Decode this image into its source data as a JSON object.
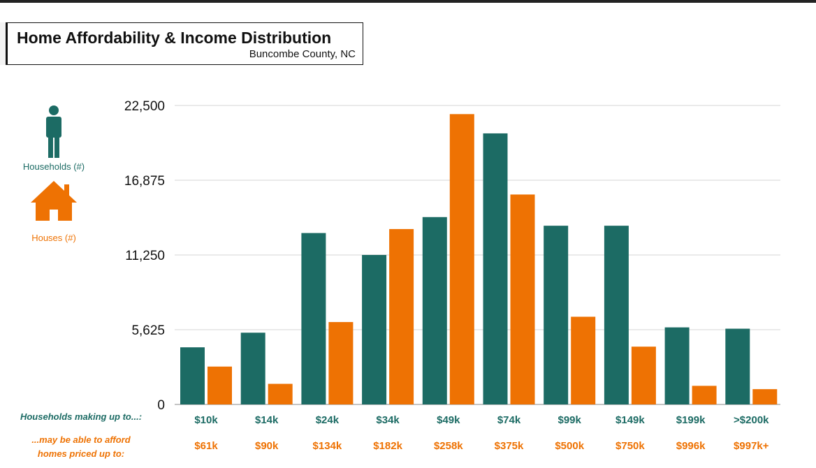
{
  "title": "Home Affordability & Income Distribution",
  "subtitle": "Buncombe County, NC",
  "legend": {
    "households": "Households (#)",
    "houses": "Houses (#)",
    "households_icon": "person-icon",
    "houses_icon": "house-icon"
  },
  "row_labels": {
    "income": "Households making up to...:",
    "price_line1": "...may be able to afford",
    "price_line2": "homes priced up to:"
  },
  "colors": {
    "households": "#1c6b64",
    "houses": "#ee7203"
  },
  "chart_data": {
    "type": "bar",
    "title": "Home Affordability & Income Distribution",
    "subtitle": "Buncombe County, NC",
    "categories": [
      "$10k",
      "$14k",
      "$24k",
      "$34k",
      "$49k",
      "$74k",
      "$99k",
      "$149k",
      "$199k",
      ">$200k"
    ],
    "price_labels": [
      "$61k",
      "$90k",
      "$134k",
      "$182k",
      "$258k",
      "$375k",
      "$500k",
      "$750k",
      "$996k",
      "$997k+"
    ],
    "series": [
      {
        "name": "Households (#)",
        "values": [
          4300,
          5400,
          12900,
          11250,
          14100,
          20400,
          13450,
          13450,
          5800,
          5700
        ]
      },
      {
        "name": "Houses (#)",
        "values": [
          2850,
          1550,
          6200,
          13200,
          21850,
          15800,
          6600,
          4350,
          1400,
          1150
        ]
      }
    ],
    "yticks": [
      "0",
      "5,625",
      "11,250",
      "16,875",
      "22,500"
    ],
    "ytick_values": [
      0,
      5625,
      11250,
      16875,
      22500
    ],
    "ylim": [
      0,
      22500
    ],
    "grid": true,
    "legend_position": "left"
  }
}
